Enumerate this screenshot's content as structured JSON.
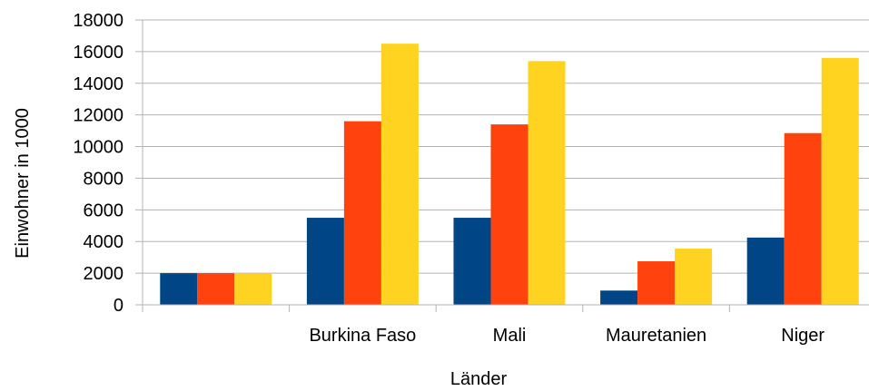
{
  "chart_data": {
    "type": "bar",
    "title": "",
    "xlabel": "Länder",
    "ylabel": "Einwohner in 1000",
    "categories": [
      "",
      "Burkina Faso",
      "Mali",
      "Mauretanien",
      "Niger"
    ],
    "series": [
      {
        "color": "#004586",
        "values": [
          2000,
          5500,
          5500,
          900,
          4250
        ]
      },
      {
        "color": "#ff420e",
        "values": [
          2000,
          11600,
          11400,
          2750,
          10850
        ]
      },
      {
        "color": "#ffd320",
        "values": [
          2000,
          16500,
          15400,
          3550,
          15600
        ]
      }
    ],
    "ylim": [
      0,
      18000
    ],
    "yticks": [
      0,
      2000,
      4000,
      6000,
      8000,
      10000,
      12000,
      14000,
      16000,
      18000
    ],
    "grid": true,
    "legend": "none"
  }
}
